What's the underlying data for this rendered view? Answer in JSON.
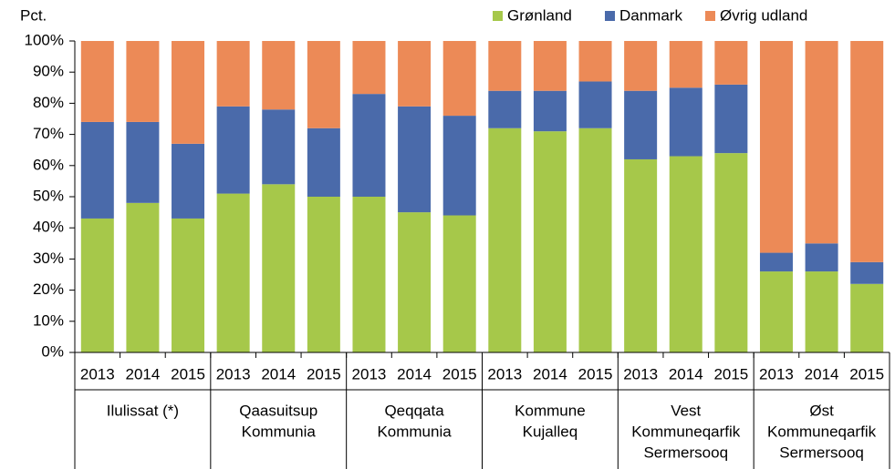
{
  "chart_data": {
    "type": "stacked_bar",
    "y_label": "Pct.",
    "categories": [
      "2013",
      "2014",
      "2015",
      "2013",
      "2014",
      "2015",
      "2013",
      "2014",
      "2015",
      "2013",
      "2014",
      "2015",
      "2013",
      "2014",
      "2015",
      "2013",
      "2014",
      "2015"
    ],
    "groups": [
      {
        "lines": [
          "Ilulissat (*)"
        ]
      },
      {
        "lines": [
          "Qaasuitsup",
          "Kommunia"
        ]
      },
      {
        "lines": [
          "Qeqqata",
          "Kommunia"
        ]
      },
      {
        "lines": [
          "Kommune",
          "Kujalleq"
        ]
      },
      {
        "lines": [
          "Vest",
          "Kommuneqarfik",
          "Sermersooq"
        ]
      },
      {
        "lines": [
          "Øst",
          "Kommuneqarfik",
          "Sermersooq"
        ]
      }
    ],
    "series": [
      {
        "name": "Grønland",
        "color": "#a6c84a",
        "values": [
          43,
          48,
          43,
          51,
          54,
          50,
          50,
          45,
          44,
          72,
          71,
          72,
          62,
          63,
          64,
          26,
          26,
          22
        ]
      },
      {
        "name": "Danmark",
        "color": "#4a6aaa",
        "values": [
          31,
          26,
          24,
          28,
          24,
          22,
          33,
          34,
          32,
          12,
          13,
          15,
          22,
          22,
          22,
          6,
          9,
          7
        ]
      },
      {
        "name": "Øvrig udland",
        "color": "#ec8a57",
        "values": [
          26,
          26,
          33,
          21,
          22,
          28,
          17,
          21,
          24,
          16,
          16,
          13,
          16,
          15,
          14,
          68,
          65,
          71
        ]
      }
    ],
    "ylim": [
      0,
      100
    ],
    "yticks": [
      {
        "value": 0,
        "label": "0%"
      },
      {
        "value": 10,
        "label": "10%"
      },
      {
        "value": 20,
        "label": "20%"
      },
      {
        "value": 30,
        "label": "30%"
      },
      {
        "value": 40,
        "label": "40%"
      },
      {
        "value": 50,
        "label": "50%"
      },
      {
        "value": 60,
        "label": "60%"
      },
      {
        "value": 70,
        "label": "70%"
      },
      {
        "value": 80,
        "label": "80%"
      },
      {
        "value": 90,
        "label": "90%"
      },
      {
        "value": 100,
        "label": "100%"
      }
    ],
    "legend": "top"
  }
}
